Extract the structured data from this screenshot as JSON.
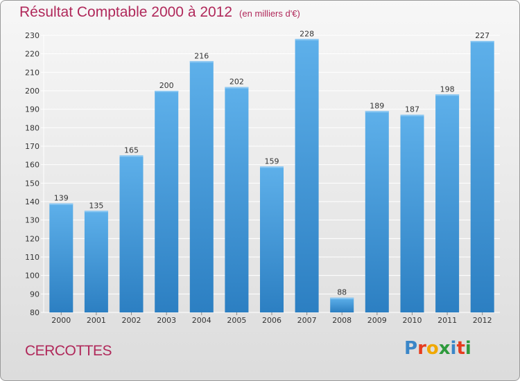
{
  "header": {
    "title": "Résultat Comptable 2000 à 2012",
    "subtitle": "(en milliers d'€)"
  },
  "footer": {
    "commune": "CERCOTTES",
    "logo_text": "Proxiti",
    "logo_letters": [
      "P",
      "r",
      "o",
      "x",
      "i",
      "t",
      "i"
    ],
    "logo_colors": [
      "#3a86c8",
      "#e63c1e",
      "#f0a800",
      "#2e9a3c",
      "#3a86c8",
      "#e63c1e",
      "#2e9a3c"
    ]
  },
  "colors": {
    "bar_light": "#5eb0ea",
    "bar_dark": "#2c7fc2",
    "grid": "#ffffff",
    "text": "#333333",
    "accent": "#b0285a"
  },
  "chart_data": {
    "type": "bar",
    "title": "Résultat Comptable 2000 à 2012",
    "subtitle": "(en milliers d'€)",
    "xlabel": "",
    "ylabel": "",
    "categories": [
      "2000",
      "2001",
      "2002",
      "2003",
      "2004",
      "2005",
      "2006",
      "2007",
      "2008",
      "2009",
      "2010",
      "2011",
      "2012"
    ],
    "values": [
      139,
      135,
      165,
      200,
      216,
      202,
      159,
      228,
      88,
      189,
      187,
      198,
      227
    ],
    "ylim": [
      80,
      230
    ],
    "yticks": [
      80,
      90,
      100,
      110,
      120,
      130,
      140,
      150,
      160,
      170,
      180,
      190,
      200,
      210,
      220,
      230
    ],
    "grid": true,
    "data_labels": true
  }
}
